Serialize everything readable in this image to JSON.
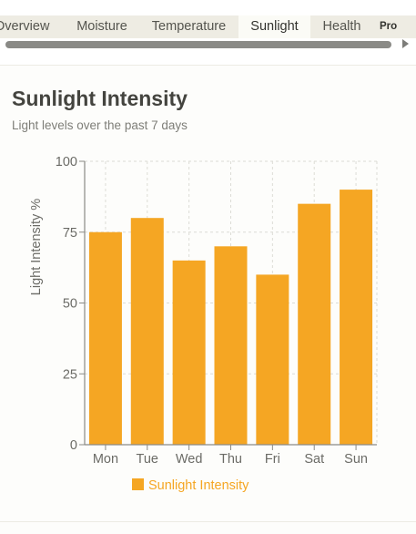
{
  "tabs": [
    {
      "label": "Overview",
      "active": false
    },
    {
      "label": "Moisture",
      "active": false
    },
    {
      "label": "Temperature",
      "active": false
    },
    {
      "label": "Sunlight",
      "active": true
    },
    {
      "label": "Health",
      "active": false
    },
    {
      "label": "Pro",
      "active": false
    }
  ],
  "chart_data": {
    "type": "bar",
    "title": "Sunlight Intensity",
    "subtitle": "Light levels over the past 7 days",
    "xlabel": "",
    "ylabel": "Light Intensity %",
    "categories": [
      "Mon",
      "Tue",
      "Wed",
      "Thu",
      "Fri",
      "Sat",
      "Sun"
    ],
    "series": [
      {
        "name": "Sunlight Intensity",
        "values": [
          75,
          80,
          65,
          70,
          60,
          85,
          90
        ],
        "color": "#f5a623"
      }
    ],
    "ylim": [
      0,
      100
    ],
    "yticks": [
      0,
      25,
      50,
      75,
      100
    ],
    "grid": true,
    "legend": "bottom"
  }
}
